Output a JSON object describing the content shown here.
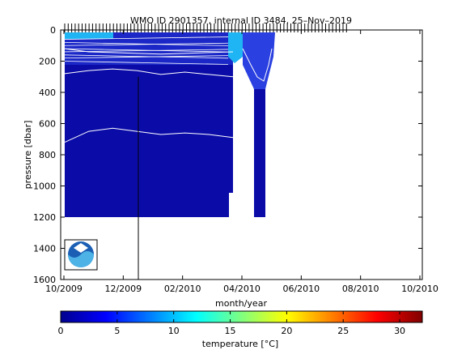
{
  "chart_data": [
    {
      "type": "heatmap",
      "title": "WMO ID 2901357, internal ID 3484, 25–Nov–2019",
      "xlabel": "month/year",
      "ylabel": "pressure [dbar]",
      "x_ticks": [
        "10/2009",
        "12/2009",
        "02/2010",
        "04/2010",
        "06/2010",
        "08/2010",
        "10/2010"
      ],
      "y_ticks": [
        0,
        200,
        400,
        600,
        800,
        1000,
        1200,
        1400,
        1600
      ],
      "ylim": [
        1600,
        0
      ],
      "y_reversed": true,
      "grid": false,
      "logo": "noaa-logo",
      "data_extent": {
        "pressure_max": 1200
      },
      "contour_isotherms": [
        {
          "label": "",
          "pressure": [
            120,
            140,
            145,
            150,
            155,
            150,
            145,
            140
          ]
        },
        {
          "label": "",
          "pressure": [
            280,
            260,
            250,
            260,
            285,
            270,
            285,
            300
          ]
        },
        {
          "label": "",
          "pressure": [
            720,
            650,
            630,
            650,
            670,
            660,
            670,
            690
          ]
        }
      ]
    },
    {
      "type": "colorbar",
      "label": "temperature [°C]",
      "range": [
        0,
        32
      ],
      "ticks": [
        0,
        5,
        10,
        15,
        20,
        25,
        30
      ],
      "colormap": "jet"
    }
  ],
  "colors": {
    "field": "#0b0ca8",
    "field_top": "#2a40e0",
    "warm_patch": "#1fb4f4",
    "contour": "#ffffff",
    "axis": "#000000"
  }
}
